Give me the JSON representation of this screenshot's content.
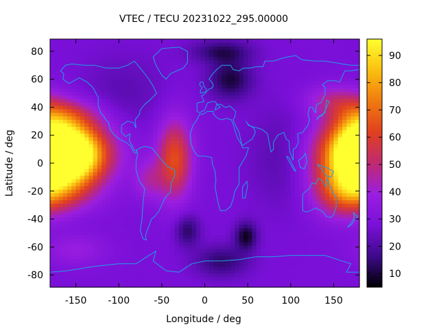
{
  "chart_data": {
    "type": "heatmap",
    "title": "VTEC / TECU 20231022_295.00000",
    "xlabel": "Longitude / deg",
    "ylabel": "Latitude / deg",
    "xlim": [
      -180,
      180
    ],
    "ylim": [
      -88.75,
      88.75
    ],
    "xticks": [
      -150,
      -100,
      -50,
      0,
      50,
      100,
      150
    ],
    "yticks": [
      -80,
      -60,
      -40,
      -20,
      0,
      20,
      40,
      60,
      80
    ],
    "colorbar": {
      "range": [
        5,
        96
      ],
      "ticks": [
        10,
        20,
        30,
        40,
        50,
        60,
        70,
        80,
        90
      ],
      "palette": [
        "#000000",
        "#3d0a8a",
        "#7a10d8",
        "#9a1ee0",
        "#c02a70",
        "#e04020",
        "#f07a10",
        "#fbc010",
        "#ffff30"
      ]
    },
    "grid": false,
    "legend": "none",
    "overlay": "coastlines",
    "overlay_color": "#1fa0e6",
    "background_tec": 28,
    "features": [
      {
        "lon": -172,
        "lat": 8,
        "peak": 68,
        "sx": 40,
        "sy": 16
      },
      {
        "lon": -150,
        "lat": 5,
        "peak": 38,
        "sx": 22,
        "sy": 14
      },
      {
        "lon": -170,
        "lat": -22,
        "peak": 18,
        "sx": 30,
        "sy": 10
      },
      {
        "lon": -165,
        "lat": 35,
        "peak": 18,
        "sx": 30,
        "sy": 8
      },
      {
        "lon": 178,
        "lat": 10,
        "peak": 40,
        "sx": 20,
        "sy": 18
      },
      {
        "lon": 160,
        "lat": -18,
        "peak": 30,
        "sx": 25,
        "sy": 14
      },
      {
        "lon": 150,
        "lat": 45,
        "peak": 16,
        "sx": 25,
        "sy": 8
      },
      {
        "lon": -35,
        "lat": 3,
        "peak": 36,
        "sx": 14,
        "sy": 20
      },
      {
        "lon": -65,
        "lat": -12,
        "peak": 14,
        "sx": 12,
        "sy": 10
      },
      {
        "lon": 30,
        "lat": 60,
        "peak": -18,
        "sx": 18,
        "sy": 10
      },
      {
        "lon": 20,
        "lat": 80,
        "peak": -15,
        "sx": 25,
        "sy": 6
      },
      {
        "lon": 48,
        "lat": -52,
        "peak": -20,
        "sx": 9,
        "sy": 7
      },
      {
        "lon": -20,
        "lat": -48,
        "peak": -15,
        "sx": 10,
        "sy": 8
      },
      {
        "lon": 20,
        "lat": -70,
        "peak": -14,
        "sx": 22,
        "sy": 8
      },
      {
        "lon": 95,
        "lat": 5,
        "peak": -8,
        "sx": 30,
        "sy": 25
      },
      {
        "lon": -95,
        "lat": 50,
        "peak": -6,
        "sx": 35,
        "sy": 20
      },
      {
        "lon": -150,
        "lat": -62,
        "peak": 10,
        "sx": 25,
        "sy": 8
      }
    ]
  }
}
